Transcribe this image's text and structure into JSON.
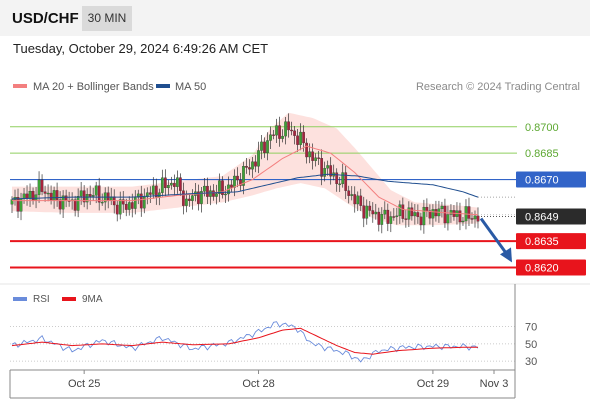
{
  "header": {
    "pair": "USD/CHF",
    "timeframe": "30 MIN",
    "datetime": "Tuesday, October 29, 2024 6:49:26 AM CET"
  },
  "legend": {
    "ma20": "MA 20 + Bollinger Bands",
    "ma50": "MA 50",
    "rsi": "RSI",
    "rsi_ma": "9MA",
    "credit": "Research © 2024 Trading Central"
  },
  "colors": {
    "candle_up": "#3ea236",
    "candle_down": "#a8233d",
    "ma20": "#f37f7f",
    "ma50": "#1f4e8f",
    "bollinger_fill": "#fde1de",
    "resistance": "#8fcf5f",
    "pivot": "#3264c8",
    "support": "#e8141c",
    "rsi": "#6a8cdb",
    "rsi_ma": "#e8141c",
    "current_price_box": "#2b2b2b",
    "forecast_arrow": "#2a5aa5"
  },
  "chart_data": [
    {
      "type": "candlestick",
      "title": "",
      "xlabel": "",
      "ylabel": "",
      "ylim": [
        0.8614,
        0.8705
      ],
      "x_ticks": [
        "Oct 25",
        "Oct 28",
        "Oct 29",
        "Nov 3"
      ],
      "price_levels": [
        {
          "label": "0.8700",
          "value": 0.87,
          "role": "resistance"
        },
        {
          "label": "0.8685",
          "value": 0.8685,
          "role": "resistance"
        },
        {
          "label": "0.8670",
          "value": 0.867,
          "role": "pivot"
        },
        {
          "label": "0.8649",
          "value": 0.8649,
          "role": "current"
        },
        {
          "label": "0.8635",
          "value": 0.8635,
          "role": "support"
        },
        {
          "label": "0.8620",
          "value": 0.862,
          "role": "support"
        }
      ],
      "series": [
        {
          "name": "USD/CHF",
          "anchors": [
            [
              0,
              0.8656
            ],
            [
              6,
              0.8661
            ],
            [
              10,
              0.8665
            ],
            [
              14,
              0.8659
            ],
            [
              20,
              0.8657
            ],
            [
              26,
              0.8662
            ],
            [
              32,
              0.8659
            ],
            [
              36,
              0.8654
            ],
            [
              42,
              0.8658
            ],
            [
              48,
              0.8664
            ],
            [
              54,
              0.8669
            ],
            [
              58,
              0.8657
            ],
            [
              62,
              0.8662
            ],
            [
              68,
              0.8663
            ],
            [
              72,
              0.8665
            ],
            [
              80,
              0.8679
            ],
            [
              86,
              0.8695
            ],
            [
              92,
              0.8699
            ],
            [
              96,
              0.8692
            ],
            [
              100,
              0.8682
            ],
            [
              104,
              0.8676
            ],
            [
              110,
              0.8668
            ],
            [
              114,
              0.8658
            ],
            [
              118,
              0.8652
            ],
            [
              124,
              0.8648
            ],
            [
              130,
              0.8651
            ],
            [
              136,
              0.8649
            ],
            [
              140,
              0.8652
            ],
            [
              146,
              0.865
            ],
            [
              150,
              0.8649
            ],
            [
              155,
              0.8649
            ]
          ]
        },
        {
          "name": "MA 20",
          "anchors": [
            [
              0,
              0.8658
            ],
            [
              20,
              0.8658
            ],
            [
              40,
              0.8658
            ],
            [
              55,
              0.8661
            ],
            [
              70,
              0.8663
            ],
            [
              80,
              0.867
            ],
            [
              90,
              0.8682
            ],
            [
              98,
              0.8689
            ],
            [
              106,
              0.8685
            ],
            [
              114,
              0.8674
            ],
            [
              122,
              0.866
            ],
            [
              130,
              0.8653
            ],
            [
              145,
              0.8651
            ],
            [
              155,
              0.865
            ]
          ]
        },
        {
          "name": "MA 50",
          "anchors": [
            [
              0,
              0.8659
            ],
            [
              20,
              0.866
            ],
            [
              40,
              0.866
            ],
            [
              60,
              0.8662
            ],
            [
              75,
              0.8663
            ],
            [
              85,
              0.8667
            ],
            [
              95,
              0.8671
            ],
            [
              105,
              0.8673
            ],
            [
              115,
              0.8672
            ],
            [
              125,
              0.8669
            ],
            [
              140,
              0.8667
            ],
            [
              150,
              0.8663
            ],
            [
              155,
              0.866
            ]
          ]
        },
        {
          "name": "Bollinger Bands",
          "upper": [
            [
              0,
              0.8666
            ],
            [
              20,
              0.8666
            ],
            [
              40,
              0.8666
            ],
            [
              55,
              0.8669
            ],
            [
              70,
              0.8672
            ],
            [
              80,
              0.8684
            ],
            [
              86,
              0.8699
            ],
            [
              92,
              0.8708
            ],
            [
              100,
              0.8705
            ],
            [
              108,
              0.8699
            ],
            [
              114,
              0.8688
            ],
            [
              120,
              0.8676
            ],
            [
              126,
              0.8664
            ],
            [
              134,
              0.8657
            ],
            [
              150,
              0.8655
            ],
            [
              155,
              0.8654
            ]
          ],
          "lower": [
            [
              0,
              0.8652
            ],
            [
              20,
              0.8651
            ],
            [
              40,
              0.8651
            ],
            [
              55,
              0.8654
            ],
            [
              70,
              0.8657
            ],
            [
              80,
              0.8661
            ],
            [
              88,
              0.8665
            ],
            [
              96,
              0.8668
            ],
            [
              104,
              0.8665
            ],
            [
              112,
              0.8656
            ],
            [
              120,
              0.8648
            ],
            [
              128,
              0.8644
            ],
            [
              140,
              0.8644
            ],
            [
              155,
              0.8645
            ]
          ]
        }
      ],
      "forecast": {
        "from": 0.8649,
        "to": 0.8624
      }
    },
    {
      "type": "line",
      "title": "",
      "ylim": [
        22,
        80
      ],
      "y_ticks": [
        70,
        50,
        30
      ],
      "series": [
        {
          "name": "RSI",
          "anchors": [
            [
              0,
              48
            ],
            [
              10,
              56
            ],
            [
              20,
              42
            ],
            [
              30,
              54
            ],
            [
              40,
              45
            ],
            [
              50,
              57
            ],
            [
              60,
              44
            ],
            [
              72,
              51
            ],
            [
              82,
              64
            ],
            [
              88,
              74
            ],
            [
              94,
              70
            ],
            [
              100,
              50
            ],
            [
              106,
              44
            ],
            [
              112,
              38
            ],
            [
              116,
              30
            ],
            [
              122,
              42
            ],
            [
              130,
              46
            ],
            [
              140,
              47
            ],
            [
              150,
              47
            ],
            [
              155,
              46
            ]
          ]
        },
        {
          "name": "9MA",
          "anchors": [
            [
              0,
              48
            ],
            [
              10,
              52
            ],
            [
              20,
              48
            ],
            [
              30,
              50
            ],
            [
              40,
              48
            ],
            [
              50,
              52
            ],
            [
              60,
              49
            ],
            [
              72,
              50
            ],
            [
              82,
              57
            ],
            [
              90,
              66
            ],
            [
              96,
              68
            ],
            [
              102,
              58
            ],
            [
              108,
              48
            ],
            [
              114,
              40
            ],
            [
              120,
              38
            ],
            [
              128,
              42
            ],
            [
              140,
              45
            ],
            [
              150,
              46
            ],
            [
              155,
              46
            ]
          ]
        }
      ]
    }
  ]
}
